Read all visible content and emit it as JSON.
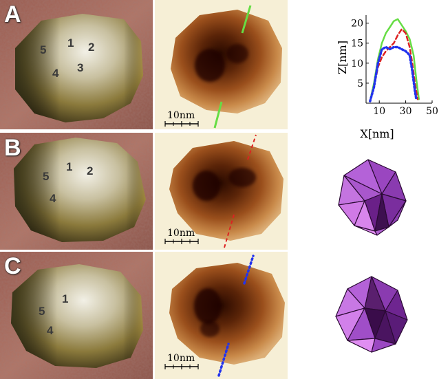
{
  "panels": [
    {
      "letter": "A",
      "sites": [
        "5",
        "1",
        "2",
        "4",
        "3"
      ],
      "scalebar": "10nm",
      "profile_color": "#66dd44",
      "profile_style": "solid"
    },
    {
      "letter": "B",
      "sites": [
        "5",
        "1",
        "2",
        "4"
      ],
      "scalebar": "10nm",
      "profile_color": "#dd2222",
      "profile_style": "dashed",
      "polyhedron": "icosahedron"
    },
    {
      "letter": "C",
      "sites": [
        "5",
        "1",
        "4"
      ],
      "scalebar": "10nm",
      "profile_color": "#2233ee",
      "profile_style": "dotted",
      "polyhedron": "icosahedron"
    }
  ],
  "colors": {
    "substrate": "#a86a5c",
    "afm_background": "#f6efd6",
    "polyhedron_face_light": "#b463d8",
    "polyhedron_face_dark": "#5a1f6e"
  },
  "chart_data": {
    "type": "line",
    "xlabel": "X[nm]",
    "ylabel": "Z[nm]",
    "xlim": [
      0,
      50
    ],
    "ylim": [
      0,
      22
    ],
    "xticks": [
      10,
      30,
      50
    ],
    "yticks": [
      5,
      10,
      15,
      20
    ],
    "series": [
      {
        "color": "#66dd44",
        "style": "solid",
        "x": [
          3,
          6,
          9,
          12,
          15,
          18,
          21,
          24,
          27,
          30,
          33,
          36,
          38,
          40
        ],
        "y": [
          0.5,
          5,
          11,
          15,
          17.5,
          19,
          20.5,
          21,
          19.5,
          18,
          16,
          12,
          6,
          1
        ]
      },
      {
        "color": "#dd2222",
        "style": "dashed",
        "x": [
          3,
          6,
          9,
          12,
          15,
          18,
          21,
          24,
          27,
          30,
          33,
          35,
          37,
          39
        ],
        "y": [
          0.5,
          4,
          9,
          11.5,
          13,
          14,
          15,
          17,
          18.5,
          17.5,
          14,
          10,
          5,
          1
        ]
      },
      {
        "color": "#2233ee",
        "style": "dotted",
        "x": [
          3,
          6,
          9,
          12,
          15,
          18,
          21,
          24,
          27,
          30,
          33,
          35,
          37,
          38
        ],
        "y": [
          0.5,
          4,
          10,
          13.5,
          14,
          13.5,
          14,
          14,
          13.5,
          13,
          12,
          8,
          3,
          1
        ]
      }
    ]
  }
}
